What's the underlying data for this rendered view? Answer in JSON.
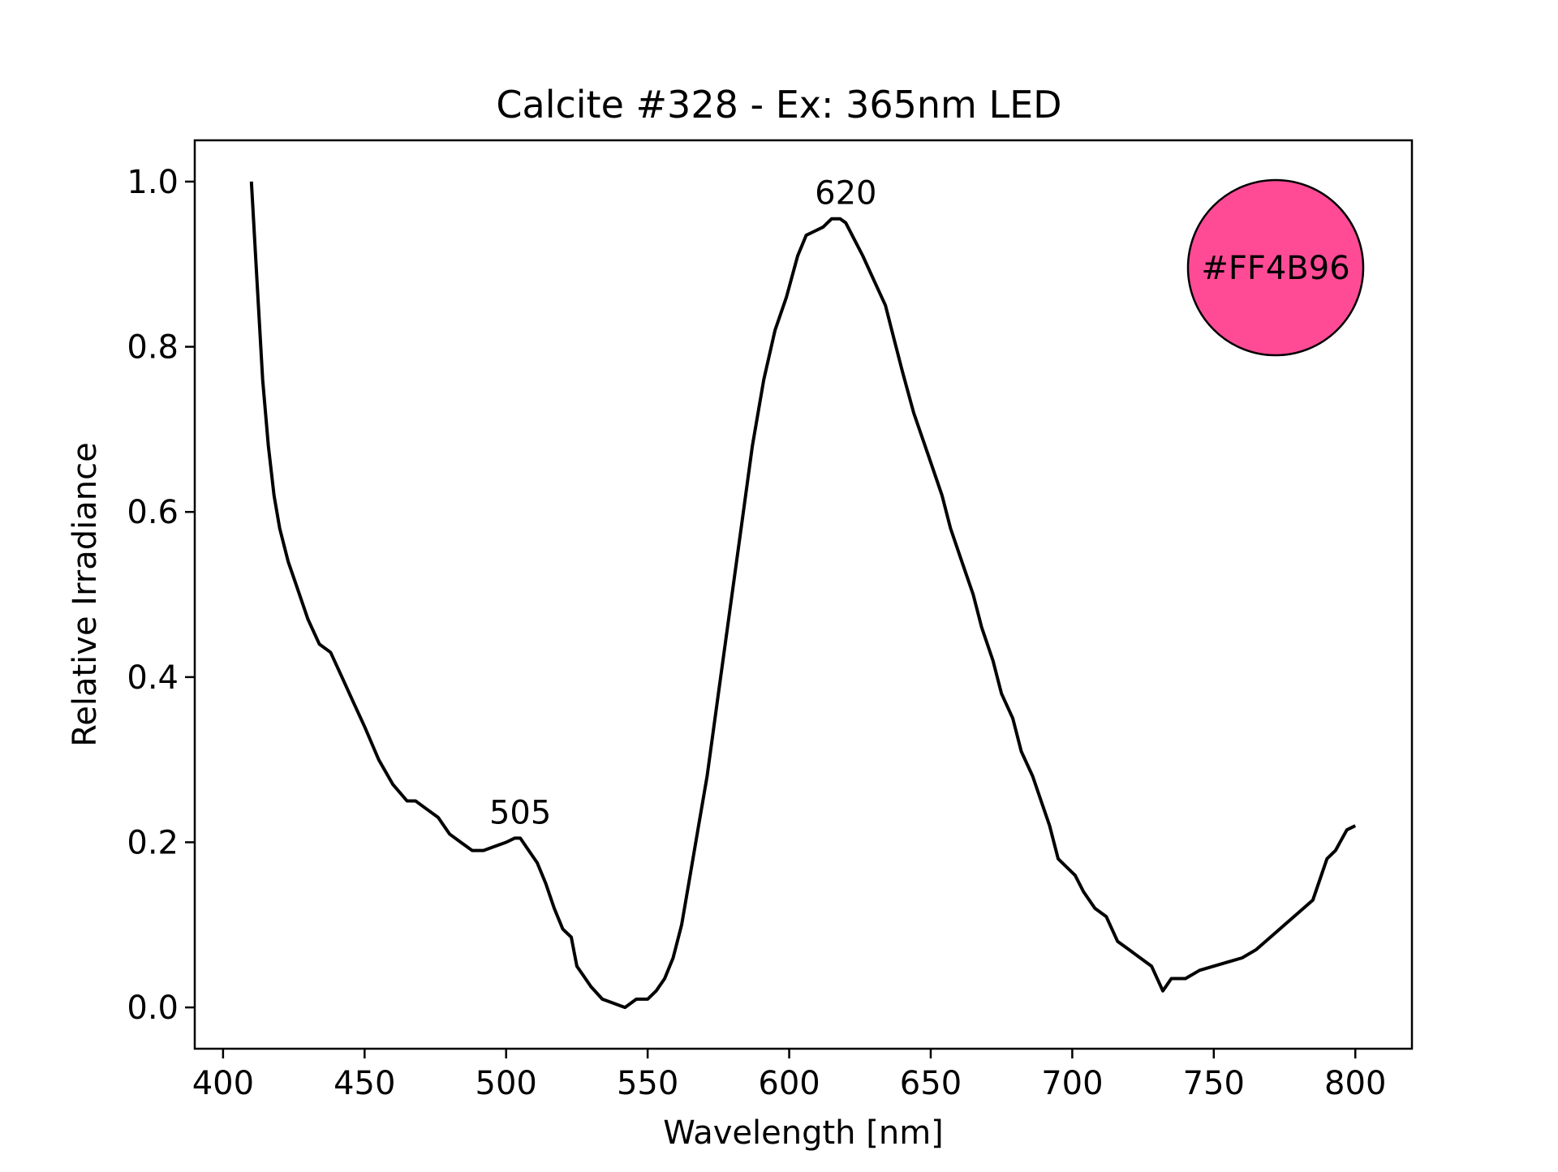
{
  "chart_data": {
    "type": "line",
    "title": "Calcite #328 - Ex: 365nm LED",
    "xlabel": "Wavelength [nm]",
    "ylabel": "Relative Irradiance",
    "xlim": [
      390,
      820
    ],
    "ylim": [
      -0.05,
      1.05
    ],
    "xticks": [
      400,
      450,
      500,
      550,
      600,
      650,
      700,
      750,
      800
    ],
    "yticks": [
      0.0,
      0.2,
      0.4,
      0.6,
      0.8,
      1.0
    ],
    "xtick_labels": [
      "400",
      "450",
      "500",
      "550",
      "600",
      "650",
      "700",
      "750",
      "800"
    ],
    "ytick_labels": [
      "0.0",
      "0.2",
      "0.4",
      "0.6",
      "0.8",
      "1.0"
    ],
    "grid": false,
    "series": [
      {
        "color": "#000000",
        "x": [
          410,
          412,
          414,
          416,
          418,
          420,
          423,
          426,
          430,
          434,
          438,
          442,
          446,
          450,
          455,
          460,
          465,
          468,
          472,
          476,
          480,
          484,
          488,
          492,
          496,
          500,
          503,
          505,
          508,
          511,
          514,
          517,
          520,
          523,
          525,
          527,
          530,
          534,
          538,
          542,
          546,
          550,
          553,
          556,
          559,
          562,
          565,
          568,
          571,
          575,
          579,
          583,
          587,
          591,
          595,
          599,
          603,
          606,
          609,
          612,
          615,
          618,
          620,
          623,
          626,
          630,
          634,
          637,
          640,
          644,
          648,
          651,
          654,
          657,
          661,
          665,
          668,
          672,
          675,
          679,
          682,
          686,
          689,
          692,
          695,
          698,
          701,
          704,
          708,
          712,
          716,
          720,
          724,
          728,
          732,
          735,
          740,
          745,
          750,
          755,
          760,
          765,
          770,
          775,
          780,
          785,
          790,
          793,
          797,
          800
        ],
        "y": [
          1.0,
          0.88,
          0.76,
          0.68,
          0.62,
          0.58,
          0.54,
          0.51,
          0.47,
          0.44,
          0.43,
          0.4,
          0.37,
          0.34,
          0.3,
          0.27,
          0.25,
          0.25,
          0.24,
          0.23,
          0.21,
          0.2,
          0.19,
          0.19,
          0.195,
          0.2,
          0.205,
          0.205,
          0.19,
          0.175,
          0.15,
          0.12,
          0.095,
          0.085,
          0.05,
          0.04,
          0.025,
          0.01,
          0.005,
          0.0,
          0.01,
          0.01,
          0.02,
          0.035,
          0.06,
          0.1,
          0.16,
          0.22,
          0.28,
          0.38,
          0.48,
          0.58,
          0.68,
          0.76,
          0.82,
          0.86,
          0.91,
          0.935,
          0.94,
          0.945,
          0.955,
          0.955,
          0.95,
          0.93,
          0.91,
          0.88,
          0.85,
          0.81,
          0.77,
          0.72,
          0.68,
          0.65,
          0.62,
          0.58,
          0.54,
          0.5,
          0.46,
          0.42,
          0.38,
          0.35,
          0.31,
          0.28,
          0.25,
          0.22,
          0.18,
          0.17,
          0.16,
          0.14,
          0.12,
          0.11,
          0.08,
          0.07,
          0.06,
          0.05,
          0.02,
          0.035,
          0.035,
          0.045,
          0.05,
          0.055,
          0.06,
          0.07,
          0.085,
          0.1,
          0.115,
          0.13,
          0.18,
          0.19,
          0.215,
          0.22
        ]
      }
    ],
    "annotations": [
      {
        "text": "505",
        "x": 505,
        "y": 0.205
      },
      {
        "text": "620",
        "x": 620,
        "y": 0.955
      }
    ],
    "color_swatch": {
      "label": "#FF4B96",
      "fill": "#FF4B96"
    }
  }
}
